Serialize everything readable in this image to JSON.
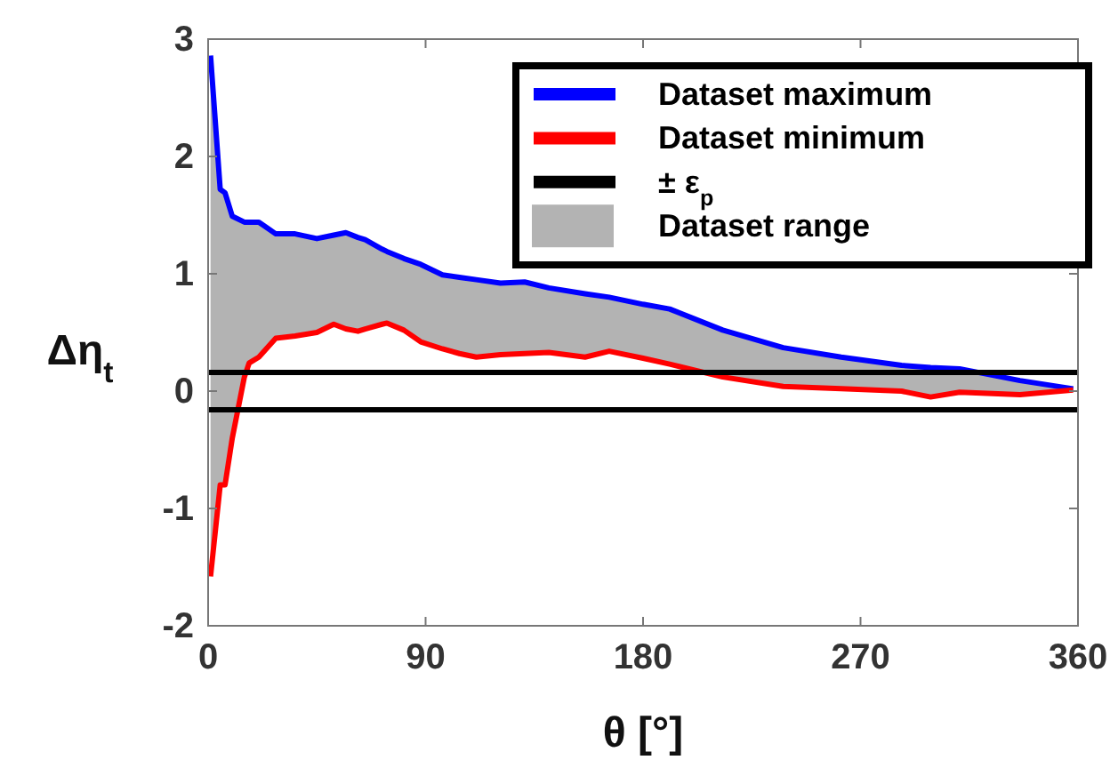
{
  "chart_data": {
    "type": "line",
    "xlabel": "θ [°]",
    "ylabel": "Δη$_{t}$",
    "x": [
      1,
      5,
      7,
      10,
      15,
      17,
      21,
      28,
      36,
      45,
      52,
      57,
      62,
      65,
      72,
      74,
      81,
      88,
      97,
      104,
      111,
      121,
      131,
      141,
      156,
      166,
      180,
      191,
      213,
      238,
      262,
      287,
      299,
      311,
      336,
      358
    ],
    "series": [
      {
        "name": "Dataset maximum",
        "color": "#0000ff",
        "values": [
          2.86,
          1.72,
          1.69,
          1.49,
          1.44,
          1.44,
          1.44,
          1.34,
          1.34,
          1.3,
          1.33,
          1.35,
          1.31,
          1.29,
          1.21,
          1.19,
          1.13,
          1.08,
          0.99,
          0.97,
          0.95,
          0.92,
          0.93,
          0.88,
          0.83,
          0.8,
          0.74,
          0.7,
          0.52,
          0.37,
          0.29,
          0.22,
          0.2,
          0.19,
          0.09,
          0.02
        ],
        "lower": [
          -1.58,
          -0.8,
          -0.8,
          -0.4,
          0.12,
          0.24,
          0.29,
          0.45,
          0.47,
          0.5,
          0.57,
          0.53,
          0.51,
          0.53,
          0.57,
          0.58,
          0.52,
          0.42,
          0.36,
          0.32,
          0.29,
          0.31,
          0.32,
          0.33,
          0.29,
          0.34,
          0.28,
          0.23,
          0.12,
          0.04,
          0.02,
          0.0,
          -0.05,
          -0.01,
          -0.03,
          0.01
        ],
        "upper": [
          2.86,
          1.72,
          1.69,
          1.49,
          1.44,
          1.44,
          1.44,
          1.34,
          1.34,
          1.3,
          1.33,
          1.35,
          1.31,
          1.29,
          1.21,
          1.19,
          1.13,
          1.08,
          0.99,
          0.97,
          0.95,
          0.92,
          0.93,
          0.88,
          0.83,
          0.8,
          0.74,
          0.7,
          0.52,
          0.37,
          0.29,
          0.22,
          0.2,
          0.19,
          0.09,
          0.02
        ]
      },
      {
        "name": "Dataset minimum",
        "color": "#ff0000",
        "values": [
          -1.58,
          -0.8,
          -0.8,
          -0.4,
          0.12,
          0.24,
          0.29,
          0.45,
          0.47,
          0.5,
          0.57,
          0.53,
          0.51,
          0.53,
          0.57,
          0.58,
          0.52,
          0.42,
          0.36,
          0.32,
          0.29,
          0.31,
          0.32,
          0.33,
          0.29,
          0.34,
          0.28,
          0.23,
          0.12,
          0.04,
          0.02,
          0.0,
          -0.05,
          -0.01,
          -0.03,
          0.01
        ]
      }
    ],
    "ref_lines": [
      {
        "axis": "y",
        "value": 0.16,
        "label": "± ε$_{p}$",
        "color": "#000000"
      },
      {
        "axis": "y",
        "value": -0.16,
        "color": "#000000"
      }
    ],
    "annotations": [
      "Dataset range"
    ],
    "xlim": [
      0,
      360
    ],
    "xticks": [
      0,
      90,
      180,
      270,
      360
    ],
    "ylim": [
      -2,
      3
    ],
    "yticks": [
      -2,
      -1,
      0,
      1,
      2,
      3
    ],
    "grid": false,
    "legend": "top right",
    "line_style": "solid",
    "marker": "none"
  }
}
